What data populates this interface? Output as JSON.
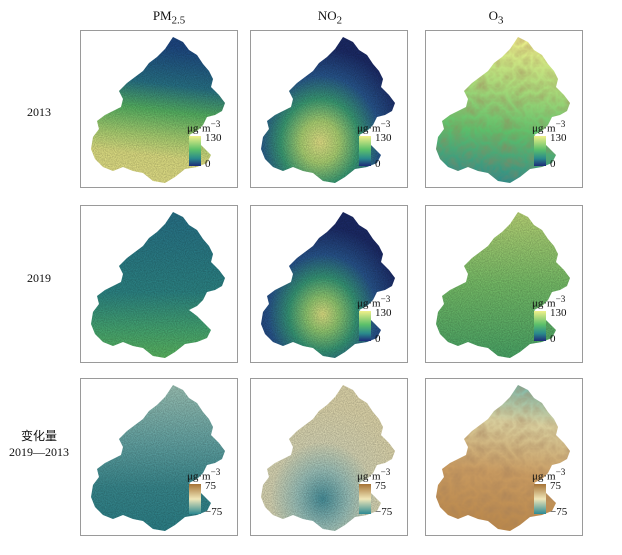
{
  "columns": [
    "PM",
    "NO",
    "O"
  ],
  "column_subscripts": [
    "2.5",
    "2",
    "3"
  ],
  "rows": [
    {
      "label_line1": "2013",
      "label_line2": ""
    },
    {
      "label_line1": "2019",
      "label_line2": ""
    },
    {
      "label_line1": "变化量",
      "label_line2": "2019—2013"
    }
  ],
  "legend_concentration": {
    "unit_base": "μg·m",
    "unit_exp": "−3",
    "max": "130",
    "min": "0"
  },
  "legend_change": {
    "unit_base": "μg·m",
    "unit_exp": "−3",
    "max": "75",
    "min": "−75"
  },
  "colors": {
    "conc_high": "#f0f08a",
    "conc_mid": "#5cc06a",
    "conc_low": "#1e3a80",
    "chg_pos": "#b8864a",
    "chg_zero": "#efe6b8",
    "chg_neg": "#2f8a92"
  }
}
